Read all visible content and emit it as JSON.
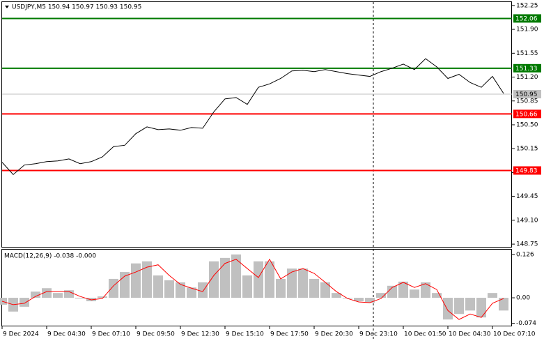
{
  "chart_data": [
    {
      "type": "line",
      "title": "USDJPY,M5  150.94 150.97 150.93 150.95",
      "categories": [
        "9 Dec 2024",
        null,
        null,
        null,
        "9 Dec 04:30",
        null,
        null,
        null,
        "9 Dec 07:10",
        null,
        null,
        null,
        "9 Dec 09:50",
        null,
        null,
        null,
        "9 Dec 12:30",
        null,
        null,
        null,
        "9 Dec 15:10",
        null,
        null,
        null,
        "9 Dec 17:50",
        null,
        null,
        null,
        "9 Dec 20:30",
        null,
        null,
        null,
        "9 Dec 23:10",
        null,
        null,
        null,
        "10 Dec 01:50",
        null,
        null,
        null,
        "10 Dec 04:30",
        null,
        null,
        null,
        "10 Dec 07:10",
        null
      ],
      "series": [
        {
          "name": "USDJPY",
          "color": "#000000",
          "values": [
            149.95,
            149.77,
            149.91,
            149.93,
            149.96,
            149.97,
            150.0,
            149.93,
            149.96,
            150.03,
            150.18,
            150.2,
            150.37,
            150.47,
            150.43,
            150.44,
            150.42,
            150.46,
            150.45,
            150.69,
            150.88,
            150.9,
            150.8,
            151.05,
            151.1,
            151.18,
            151.29,
            151.3,
            151.28,
            151.31,
            151.28,
            151.25,
            151.23,
            151.21,
            151.28,
            151.33,
            151.39,
            151.31,
            151.47,
            151.35,
            151.18,
            151.24,
            151.12,
            151.05,
            151.21,
            150.96
          ]
        }
      ],
      "levels": [
        {
          "value": 152.06,
          "color": "#007a00"
        },
        {
          "value": 151.33,
          "color": "#007a00"
        },
        {
          "value": 150.66,
          "color": "#ff0000"
        },
        {
          "value": 149.83,
          "color": "#ff0000"
        }
      ],
      "last_price": 150.95,
      "ylim": [
        148.71,
        152.31
      ],
      "yticks": [
        152.25,
        {
          "value": 151.9,
          "label": "151.90"
        },
        151.55,
        {
          "value": 151.2,
          "label": "151.20"
        },
        150.85,
        {
          "value": 150.5,
          "label": "150.50"
        },
        150.15,
        {
          "value": 149.8,
          "label": "149.80"
        },
        149.45,
        {
          "value": 149.1,
          "label": "149.10"
        },
        148.75
      ]
    },
    {
      "type": "macd",
      "title": "MACD(12,26,9) -0.038 -0.000",
      "series": [
        {
          "name": "MACD",
          "kind": "bar",
          "color": "#c0c0c0",
          "values": [
            -0.02,
            -0.04,
            -0.026,
            0.018,
            0.028,
            0.014,
            0.022,
            -0.002,
            -0.01,
            0.004,
            0.055,
            0.075,
            0.1,
            0.106,
            0.065,
            0.051,
            0.045,
            0.03,
            0.045,
            0.106,
            0.116,
            0.126,
            0.065,
            0.106,
            0.106,
            0.055,
            0.085,
            0.085,
            0.055,
            0.045,
            0.014,
            -0.002,
            -0.01,
            -0.014,
            0.014,
            0.035,
            0.047,
            0.024,
            0.045,
            0.014,
            -0.063,
            -0.047,
            -0.037,
            -0.057,
            0.014,
            -0.037
          ]
        },
        {
          "name": "Signal",
          "kind": "line",
          "color": "#ff0000",
          "values": [
            -0.01,
            -0.02,
            -0.016,
            0.004,
            0.018,
            0.018,
            0.018,
            0.004,
            -0.006,
            -0.002,
            0.035,
            0.063,
            0.075,
            0.089,
            0.096,
            0.065,
            0.039,
            0.028,
            0.018,
            0.065,
            0.1,
            0.112,
            0.085,
            0.059,
            0.112,
            0.055,
            0.075,
            0.085,
            0.071,
            0.045,
            0.018,
            -0.002,
            -0.012,
            -0.014,
            -0.002,
            0.03,
            0.045,
            0.03,
            0.041,
            0.024,
            -0.037,
            -0.063,
            -0.047,
            -0.057,
            -0.016,
            -0.002
          ]
        }
      ],
      "ylim": [
        -0.083,
        0.14
      ],
      "yticks": [
        0.126,
        {
          "value": 0,
          "label": "0.00"
        },
        -0.074
      ]
    }
  ]
}
